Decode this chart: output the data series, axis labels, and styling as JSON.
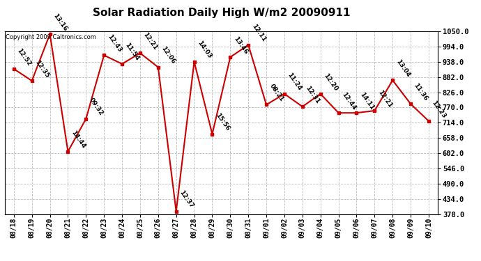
{
  "title": "Solar Radiation Daily High W/m2 20090911",
  "copyright": "Copyright 2009 Caltronics.com",
  "dates": [
    "08/18",
    "08/19",
    "08/20",
    "08/21",
    "08/22",
    "08/23",
    "08/24",
    "08/25",
    "08/26",
    "08/27",
    "08/28",
    "08/29",
    "08/30",
    "08/31",
    "09/01",
    "09/02",
    "09/03",
    "09/04",
    "09/05",
    "09/06",
    "09/07",
    "09/08",
    "09/09",
    "09/10"
  ],
  "values": [
    912,
    868,
    1040,
    608,
    728,
    962,
    930,
    970,
    918,
    388,
    938,
    672,
    955,
    1000,
    780,
    820,
    773,
    820,
    750,
    750,
    758,
    870,
    783,
    720
  ],
  "labels": [
    "12:52",
    "12:35",
    "13:16",
    "14:44",
    "09:32",
    "12:43",
    "11:54",
    "12:21",
    "12:06",
    "12:37",
    "14:03",
    "15:56",
    "13:46",
    "12:11",
    "08:21",
    "11:24",
    "12:31",
    "12:20",
    "12:44",
    "14:11",
    "12:21",
    "13:04",
    "11:36",
    "12:23"
  ],
  "line_color": "#cc0000",
  "marker_color": "#cc0000",
  "bg_color": "#ffffff",
  "plot_bg_color": "#ffffff",
  "grid_color": "#bbbbbb",
  "ylim_min": 378.0,
  "ylim_max": 1050.0,
  "yticks": [
    378.0,
    434.0,
    490.0,
    546.0,
    602.0,
    658.0,
    714.0,
    770.0,
    826.0,
    882.0,
    938.0,
    994.0,
    1050.0
  ],
  "label_fontsize": 6.5,
  "title_fontsize": 11,
  "copyright_fontsize": 6,
  "xtick_fontsize": 7,
  "ytick_fontsize": 7.5
}
